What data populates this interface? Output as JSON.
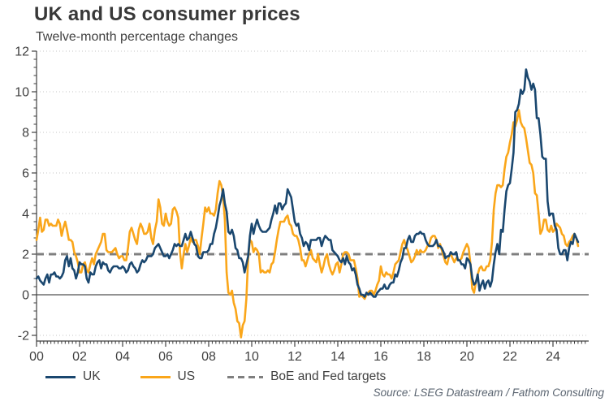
{
  "header": {
    "title": "UK and US consumer prices",
    "subtitle": "Twelve-month percentage changes"
  },
  "source": "Source: LSEG Datastream / Fathom Consulting",
  "legend": {
    "items": [
      {
        "label": "UK",
        "color": "#1a476f",
        "style": "solid"
      },
      {
        "label": "US",
        "color": "#faa61a",
        "style": "solid"
      },
      {
        "label": "BoE and Fed targets",
        "color": "#7f7f7f",
        "style": "dashed"
      }
    ]
  },
  "colors": {
    "uk_line": "#1a476f",
    "us_line": "#faa61a",
    "target_line": "#7f7f7f",
    "gridline": "#c5c5c5",
    "zero_line": "#6e6e6e",
    "axis": "#404040",
    "tick_text": "#404040",
    "title_text": "#383838",
    "source_text": "#5a6470"
  },
  "chart_data": {
    "type": "line",
    "title": "UK and US consumer prices",
    "subtitle": "Twelve-month percentage changes",
    "frequency": "monthly",
    "x_start": "2000-01",
    "x_end": "2025-03",
    "x_axis": {
      "tick_labels": [
        "00",
        "02",
        "04",
        "06",
        "08",
        "10",
        "12",
        "14",
        "16",
        "18",
        "20",
        "22",
        "24"
      ],
      "tick_year_step": 2,
      "minor_tick_months": 2
    },
    "y_axis": {
      "min": -2,
      "max": 12,
      "ticks": [
        -2,
        0,
        2,
        4,
        6,
        8,
        10,
        12
      ],
      "grid": "dotted"
    },
    "reference_lines": [
      {
        "value": 2,
        "label": "BoE and Fed targets",
        "style": "dashed"
      },
      {
        "value": 0,
        "label": "",
        "style": "solid"
      }
    ],
    "legend_position": "bottom",
    "series": [
      {
        "name": "UK",
        "color": "#1a476f",
        "values": [
          0.8,
          0.9,
          0.7,
          0.6,
          0.5,
          0.8,
          1.0,
          0.6,
          1.0,
          1.0,
          1.1,
          0.9,
          0.9,
          0.8,
          0.9,
          1.1,
          1.7,
          1.9,
          1.4,
          1.8,
          1.3,
          1.2,
          0.8,
          1.1,
          1.6,
          1.5,
          1.5,
          1.4,
          0.8,
          0.6,
          1.1,
          1.0,
          1.0,
          1.4,
          1.6,
          1.7,
          1.3,
          1.6,
          1.5,
          1.5,
          1.2,
          1.1,
          1.3,
          1.4,
          1.4,
          1.4,
          1.3,
          1.3,
          1.4,
          1.3,
          1.1,
          1.2,
          1.5,
          1.6,
          1.4,
          1.3,
          1.1,
          1.2,
          1.5,
          1.7,
          1.6,
          1.7,
          1.9,
          1.9,
          1.9,
          2.0,
          2.3,
          2.4,
          2.5,
          2.3,
          2.1,
          1.9,
          1.9,
          2.0,
          1.8,
          2.0,
          2.2,
          2.5,
          2.4,
          2.5,
          2.4,
          2.4,
          2.7,
          3.0,
          2.7,
          2.8,
          3.1,
          2.8,
          2.5,
          2.4,
          1.9,
          1.8,
          1.8,
          2.1,
          2.1,
          2.1,
          2.2,
          2.5,
          2.5,
          3.0,
          3.3,
          3.8,
          4.4,
          4.7,
          5.2,
          4.5,
          4.1,
          3.1,
          3.0,
          3.2,
          2.9,
          2.3,
          2.2,
          1.8,
          1.8,
          1.6,
          1.1,
          1.5,
          1.9,
          2.9,
          3.5,
          3.0,
          3.4,
          3.7,
          3.4,
          3.2,
          3.1,
          3.1,
          3.1,
          3.2,
          3.3,
          3.7,
          4.0,
          4.4,
          4.0,
          4.5,
          4.5,
          4.2,
          4.4,
          4.5,
          5.2,
          5.0,
          4.8,
          4.2,
          3.6,
          3.4,
          3.5,
          3.0,
          2.8,
          2.4,
          2.6,
          2.5,
          2.2,
          2.7,
          2.7,
          2.7,
          2.7,
          2.8,
          2.8,
          2.4,
          2.7,
          2.9,
          2.8,
          2.7,
          2.7,
          2.2,
          2.1,
          2.0,
          1.9,
          1.7,
          1.6,
          1.8,
          1.5,
          1.9,
          1.6,
          1.5,
          1.2,
          1.3,
          1.0,
          0.5,
          0.3,
          0.0,
          0.0,
          -0.1,
          0.1,
          0.0,
          0.1,
          0.0,
          -0.1,
          -0.1,
          0.1,
          0.2,
          0.3,
          0.3,
          0.5,
          0.3,
          0.3,
          0.5,
          0.6,
          0.6,
          1.0,
          0.9,
          1.2,
          1.6,
          1.8,
          2.3,
          2.3,
          2.7,
          2.9,
          2.6,
          2.6,
          2.9,
          3.0,
          3.0,
          3.1,
          3.0,
          3.0,
          2.7,
          2.5,
          2.4,
          2.4,
          2.4,
          2.5,
          2.7,
          2.4,
          2.4,
          2.3,
          2.1,
          1.8,
          1.9,
          1.9,
          2.1,
          2.0,
          2.0,
          2.1,
          1.7,
          1.7,
          1.5,
          1.5,
          1.3,
          1.8,
          1.7,
          1.5,
          0.8,
          0.5,
          0.6,
          1.0,
          0.2,
          0.5,
          0.7,
          0.3,
          0.6,
          0.7,
          0.4,
          0.7,
          1.5,
          2.1,
          2.5,
          2.0,
          3.2,
          3.1,
          4.2,
          5.1,
          5.4,
          5.5,
          6.2,
          7.0,
          9.0,
          9.1,
          9.4,
          10.1,
          9.9,
          10.1,
          11.1,
          10.7,
          10.5,
          10.1,
          10.4,
          10.1,
          8.7,
          8.7,
          7.9,
          6.8,
          6.7,
          6.7,
          4.6,
          3.9,
          4.0,
          4.0,
          3.4,
          3.2,
          2.3,
          2.0,
          2.0,
          2.2,
          2.2,
          1.7,
          2.3,
          2.6,
          2.5,
          3.0,
          2.8,
          2.6
        ]
      },
      {
        "name": "US",
        "color": "#faa61a",
        "values": [
          2.7,
          3.2,
          3.8,
          3.1,
          3.2,
          3.7,
          3.7,
          3.4,
          3.5,
          3.4,
          3.4,
          3.4,
          3.7,
          3.5,
          2.9,
          3.3,
          3.6,
          3.2,
          2.7,
          2.7,
          2.6,
          2.1,
          1.9,
          1.6,
          1.1,
          1.1,
          1.5,
          1.6,
          1.2,
          1.1,
          1.5,
          1.8,
          1.5,
          2.0,
          2.2,
          2.4,
          2.6,
          3.0,
          3.0,
          2.2,
          2.1,
          2.1,
          2.1,
          2.2,
          2.3,
          2.0,
          1.8,
          1.9,
          1.9,
          1.7,
          1.7,
          2.3,
          3.1,
          3.3,
          3.0,
          2.7,
          2.5,
          3.2,
          3.5,
          3.3,
          3.0,
          3.0,
          3.1,
          3.5,
          2.8,
          2.5,
          3.2,
          3.6,
          4.7,
          4.3,
          3.5,
          3.4,
          4.0,
          3.6,
          3.4,
          3.5,
          4.2,
          4.3,
          4.1,
          3.8,
          2.1,
          1.3,
          2.0,
          2.5,
          2.1,
          2.4,
          2.8,
          2.6,
          2.7,
          2.7,
          2.4,
          2.0,
          2.8,
          3.5,
          4.3,
          4.1,
          4.3,
          4.0,
          4.0,
          3.9,
          4.2,
          5.0,
          5.6,
          5.4,
          4.9,
          3.7,
          1.1,
          0.1,
          0.0,
          0.2,
          -0.4,
          -0.7,
          -1.3,
          -1.4,
          -2.1,
          -1.5,
          -1.3,
          -0.2,
          1.8,
          2.7,
          2.6,
          2.1,
          2.3,
          2.2,
          2.0,
          1.1,
          1.2,
          1.1,
          1.1,
          1.2,
          1.1,
          1.5,
          1.6,
          2.1,
          2.7,
          3.2,
          3.6,
          3.6,
          3.6,
          3.8,
          3.9,
          3.5,
          3.4,
          3.0,
          2.9,
          2.9,
          2.7,
          2.3,
          1.7,
          1.7,
          1.4,
          1.7,
          2.0,
          2.2,
          1.8,
          1.7,
          1.6,
          2.0,
          1.5,
          1.1,
          1.4,
          1.8,
          2.0,
          1.5,
          1.2,
          1.0,
          1.2,
          1.5,
          1.6,
          1.1,
          1.5,
          2.0,
          2.1,
          2.1,
          2.0,
          1.7,
          1.7,
          1.7,
          1.3,
          0.8,
          -0.1,
          0.0,
          -0.1,
          -0.2,
          0.0,
          0.1,
          0.2,
          0.2,
          0.0,
          0.2,
          0.5,
          0.7,
          1.4,
          1.0,
          0.9,
          1.1,
          1.0,
          1.0,
          0.8,
          1.1,
          1.5,
          1.6,
          1.7,
          2.1,
          2.5,
          2.7,
          2.4,
          2.2,
          1.9,
          1.6,
          1.7,
          1.9,
          2.2,
          2.0,
          2.2,
          2.1,
          2.1,
          2.2,
          2.4,
          2.5,
          2.8,
          2.9,
          2.9,
          2.7,
          2.3,
          2.5,
          2.2,
          1.9,
          1.6,
          1.5,
          1.9,
          2.0,
          1.8,
          1.6,
          1.8,
          1.7,
          1.7,
          1.8,
          2.1,
          2.3,
          2.5,
          2.3,
          1.5,
          0.3,
          0.1,
          0.6,
          1.0,
          1.3,
          1.4,
          1.2,
          1.2,
          1.4,
          1.4,
          1.7,
          2.6,
          4.2,
          5.0,
          5.4,
          5.4,
          5.3,
          5.4,
          6.2,
          6.8,
          7.0,
          7.5,
          7.9,
          8.5,
          8.3,
          8.6,
          9.1,
          8.5,
          8.3,
          8.2,
          7.7,
          7.1,
          6.5,
          6.4,
          6.0,
          5.0,
          4.9,
          4.0,
          3.0,
          3.2,
          3.7,
          3.7,
          3.2,
          3.1,
          3.4,
          3.1,
          3.2,
          3.5,
          3.4,
          3.3,
          3.0,
          2.9,
          2.5,
          2.4,
          2.6,
          2.7,
          2.9,
          3.0,
          2.8,
          2.4
        ]
      }
    ]
  }
}
